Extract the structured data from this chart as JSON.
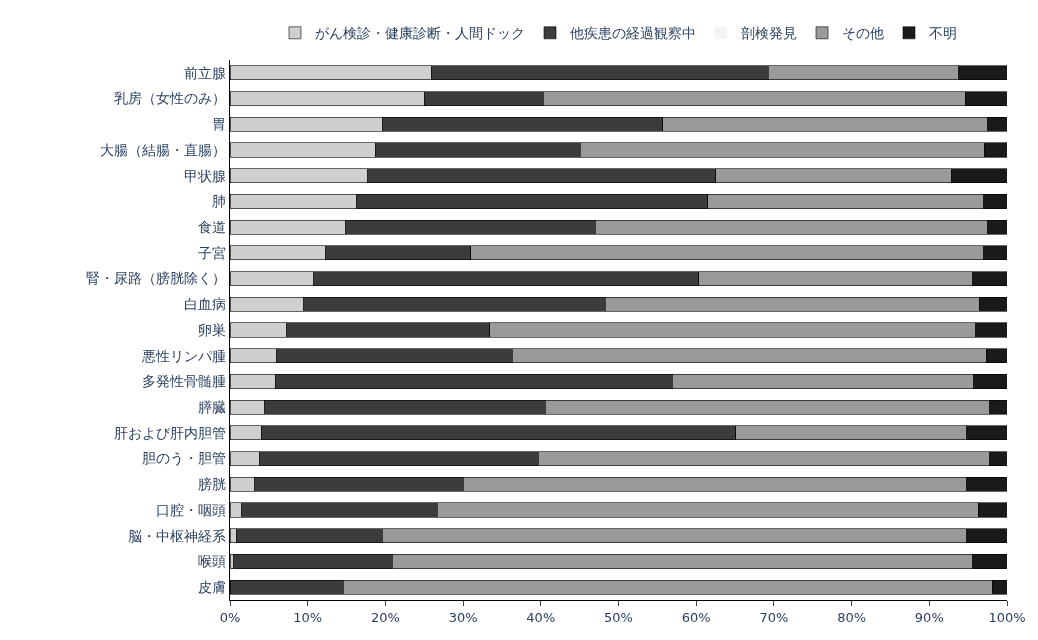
{
  "chart_data": {
    "type": "bar",
    "orientation": "horizontal",
    "stacked": true,
    "legend": "top",
    "categories": [
      "前立腺",
      "乳房（女性のみ）",
      "胃",
      "大腸（結腸・直腸）",
      "甲状腺",
      "肺",
      "食道",
      "子宮",
      "腎・尿路（膀胱除く）",
      "白血病",
      "卵巣",
      "悪性リンパ腫",
      "多発性骨髄腫",
      "膵臓",
      "肝および肝内胆管",
      "胆のう・胆管",
      "膀胱",
      "口腔・咽頭",
      "脳・中枢神経系",
      "喉頭",
      "皮膚"
    ],
    "xlim": [
      0,
      100
    ],
    "xticks": [
      {
        "value": 0,
        "label": "0%"
      },
      {
        "value": 10,
        "label": "10%"
      },
      {
        "value": 20,
        "label": "20%"
      },
      {
        "value": 30,
        "label": "30%"
      },
      {
        "value": 40,
        "label": "40%"
      },
      {
        "value": 50,
        "label": "50%"
      },
      {
        "value": 60,
        "label": "60%"
      },
      {
        "value": 70,
        "label": "70%"
      },
      {
        "value": 80,
        "label": "80%"
      },
      {
        "value": 90,
        "label": "90%"
      },
      {
        "value": 100,
        "label": "100%"
      }
    ],
    "series": [
      {
        "name": "がん検診・健康診断・人間ドック",
        "color": "#cfcfcf",
        "values": [
          25.9,
          25.0,
          19.6,
          18.7,
          17.7,
          16.3,
          14.9,
          12.3,
          10.8,
          9.5,
          7.3,
          6.0,
          5.8,
          4.5,
          4.0,
          3.8,
          3.2,
          1.5,
          0.8,
          0.5,
          0
        ]
      },
      {
        "name": "他疾患の経過観察中",
        "color": "#3c3c3c",
        "values": [
          43.4,
          15.3,
          36.1,
          26.4,
          44.8,
          45.2,
          32.1,
          18.7,
          49.5,
          38.8,
          26.1,
          30.3,
          51.1,
          36.1,
          61.1,
          35.9,
          26.8,
          25.2,
          18.8,
          20.4,
          14.6
        ]
      },
      {
        "name": "剖検発見",
        "color": "#f4f4f4",
        "values": [
          0,
          0,
          0,
          0,
          0,
          0,
          0,
          0,
          0,
          0,
          0,
          0,
          0,
          0,
          0,
          0,
          0,
          0,
          0,
          0,
          0
        ]
      },
      {
        "name": "その他",
        "color": "#9a9a9a",
        "values": [
          24.5,
          54.3,
          41.8,
          52.0,
          30.3,
          35.5,
          50.5,
          66.0,
          35.3,
          48.1,
          62.6,
          61.0,
          38.8,
          57.2,
          29.7,
          58.1,
          64.8,
          69.6,
          75.2,
          74.7,
          83.5
        ]
      },
      {
        "name": "不明",
        "color": "#1a1a1a",
        "values": [
          6.2,
          5.4,
          2.5,
          2.9,
          7.2,
          3.0,
          2.5,
          3.0,
          4.4,
          3.6,
          4.0,
          2.7,
          4.3,
          2.2,
          5.2,
          2.2,
          5.2,
          3.7,
          5.2,
          4.4,
          1.9
        ]
      }
    ]
  }
}
